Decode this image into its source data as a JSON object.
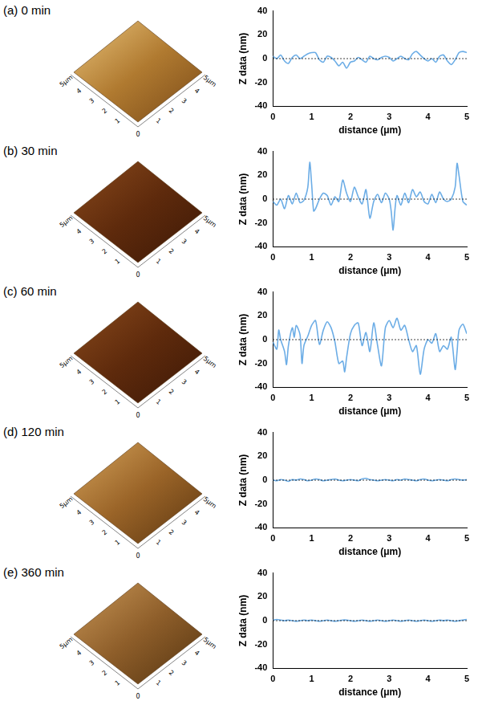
{
  "chart_data": [
    {
      "type": "line",
      "title": "(a) 0 min",
      "color": "#6cade6",
      "line_style": "solid",
      "grid": false,
      "x_label": "distance (μm)",
      "y_label": "Z data (nm)",
      "reference_line": 0,
      "xlim": [
        0,
        5
      ],
      "xticks": [
        0,
        1,
        2,
        3,
        4,
        5
      ],
      "ylim": [
        -40,
        40
      ],
      "yticks": [
        -40,
        -20,
        0,
        20,
        40
      ],
      "x": [
        0,
        0.1,
        0.2,
        0.3,
        0.4,
        0.5,
        0.6,
        0.7,
        0.8,
        0.9,
        1.0,
        1.1,
        1.2,
        1.3,
        1.4,
        1.5,
        1.6,
        1.7,
        1.8,
        1.9,
        2.0,
        2.1,
        2.2,
        2.3,
        2.4,
        2.5,
        2.6,
        2.7,
        2.8,
        2.9,
        3.0,
        3.1,
        3.2,
        3.3,
        3.4,
        3.5,
        3.6,
        3.7,
        3.8,
        3.9,
        4.0,
        4.1,
        4.2,
        4.3,
        4.4,
        4.5,
        4.6,
        4.7,
        4.8,
        4.9,
        5.0
      ],
      "values": [
        2,
        0,
        3,
        -2,
        -4,
        1,
        3,
        0,
        2,
        4,
        5,
        5,
        -1,
        -3,
        2,
        1,
        -2,
        -6,
        -3,
        -8,
        -3,
        -2,
        1,
        -1,
        -3,
        2,
        0,
        -1,
        1,
        2,
        1,
        -2,
        0,
        2,
        0,
        -1,
        4,
        6,
        3,
        0,
        -2,
        0,
        -3,
        2,
        3,
        -2,
        -5,
        -1,
        5,
        6,
        5
      ]
    },
    {
      "type": "line",
      "title": "(b) 30 min",
      "color": "#6cade6",
      "line_style": "solid",
      "grid": false,
      "x_label": "distance (μm)",
      "y_label": "Z data (nm)",
      "reference_line": 0,
      "xlim": [
        0,
        5
      ],
      "xticks": [
        0,
        1,
        2,
        3,
        4,
        5
      ],
      "ylim": [
        -40,
        40
      ],
      "yticks": [
        -40,
        -20,
        0,
        20,
        40
      ],
      "x": [
        0,
        0.1,
        0.2,
        0.3,
        0.4,
        0.5,
        0.6,
        0.7,
        0.8,
        0.9,
        0.95,
        1.0,
        1.05,
        1.1,
        1.2,
        1.3,
        1.4,
        1.5,
        1.6,
        1.7,
        1.8,
        1.9,
        2.0,
        2.1,
        2.2,
        2.3,
        2.4,
        2.5,
        2.6,
        2.7,
        2.8,
        2.9,
        3.0,
        3.05,
        3.1,
        3.15,
        3.2,
        3.3,
        3.4,
        3.5,
        3.6,
        3.7,
        3.8,
        3.9,
        4.0,
        4.1,
        4.2,
        4.3,
        4.4,
        4.5,
        4.6,
        4.7,
        4.75,
        4.8,
        4.9,
        5.0
      ],
      "values": [
        -2,
        -5,
        0,
        -8,
        3,
        -4,
        5,
        -3,
        -1,
        10,
        31,
        12,
        -10,
        -8,
        0,
        5,
        3,
        -5,
        2,
        -2,
        16,
        5,
        -2,
        10,
        2,
        -4,
        8,
        -16,
        -2,
        4,
        -3,
        5,
        0,
        -10,
        -26,
        -8,
        3,
        -5,
        5,
        -3,
        8,
        2,
        6,
        -2,
        -4,
        4,
        -3,
        6,
        0,
        -2,
        0,
        10,
        30,
        20,
        -2,
        -5
      ]
    },
    {
      "type": "line",
      "title": "(c) 60 min",
      "color": "#6cade6",
      "line_style": "solid",
      "grid": false,
      "x_label": "distance (μm)",
      "y_label": "Z data (nm)",
      "reference_line": 0,
      "xlim": [
        0,
        5
      ],
      "xticks": [
        0,
        1,
        2,
        3,
        4,
        5
      ],
      "ylim": [
        -40,
        40
      ],
      "yticks": [
        -40,
        -20,
        0,
        20,
        40
      ],
      "x": [
        0,
        0.1,
        0.15,
        0.2,
        0.3,
        0.35,
        0.4,
        0.5,
        0.55,
        0.6,
        0.7,
        0.75,
        0.8,
        0.9,
        1.0,
        1.1,
        1.2,
        1.3,
        1.4,
        1.5,
        1.6,
        1.7,
        1.8,
        1.85,
        1.9,
        2.0,
        2.1,
        2.2,
        2.3,
        2.4,
        2.5,
        2.6,
        2.7,
        2.8,
        2.9,
        3.0,
        3.1,
        3.2,
        3.3,
        3.4,
        3.5,
        3.6,
        3.7,
        3.8,
        3.9,
        4.0,
        4.1,
        4.2,
        4.3,
        4.4,
        4.5,
        4.6,
        4.7,
        4.75,
        4.8,
        4.9,
        5.0
      ],
      "values": [
        -2,
        -8,
        8,
        0,
        -10,
        -21,
        -5,
        10,
        2,
        12,
        4,
        -20,
        -5,
        3,
        12,
        16,
        -4,
        8,
        15,
        10,
        -2,
        -20,
        -18,
        -27,
        -15,
        5,
        12,
        14,
        -5,
        6,
        -10,
        14,
        -5,
        -22,
        10,
        16,
        10,
        18,
        8,
        12,
        0,
        -10,
        -5,
        -29,
        -8,
        0,
        -3,
        5,
        -10,
        -5,
        -8,
        2,
        -25,
        -10,
        8,
        13,
        5
      ]
    },
    {
      "type": "line",
      "title": "(d) 120 min",
      "color": "#6cade6",
      "line_style": "solid",
      "grid": false,
      "x_label": "distance (μm)",
      "y_label": "Z data (nm)",
      "reference_line": 0,
      "xlim": [
        0,
        5
      ],
      "xticks": [
        0,
        1,
        2,
        3,
        4,
        5
      ],
      "ylim": [
        -40,
        40
      ],
      "yticks": [
        -40,
        -20,
        0,
        20,
        40
      ],
      "x": [
        0,
        0.1,
        0.2,
        0.3,
        0.4,
        0.5,
        0.6,
        0.7,
        0.8,
        0.9,
        1.0,
        1.1,
        1.2,
        1.3,
        1.4,
        1.5,
        1.6,
        1.7,
        1.8,
        1.9,
        2.0,
        2.1,
        2.2,
        2.3,
        2.4,
        2.5,
        2.6,
        2.7,
        2.8,
        2.9,
        3.0,
        3.1,
        3.2,
        3.3,
        3.4,
        3.5,
        3.6,
        3.7,
        3.8,
        3.9,
        4.0,
        4.1,
        4.2,
        4.3,
        4.4,
        4.5,
        4.6,
        4.7,
        4.8,
        4.9,
        5.0
      ],
      "values": [
        0,
        -0.5,
        0.5,
        0,
        -1,
        0.5,
        0,
        1,
        0.5,
        -0.5,
        0,
        1,
        0.5,
        -0.5,
        0,
        0.5,
        1,
        0,
        -0.5,
        0,
        0.5,
        0,
        -0.5,
        1,
        1.5,
        0.5,
        0,
        -0.5,
        0,
        0.5,
        0,
        -0.5,
        0.5,
        0,
        1,
        0.5,
        0,
        -0.5,
        0.5,
        1,
        0,
        -0.5,
        0,
        0.5,
        0,
        -0.5,
        0.5,
        1,
        0.5,
        0,
        0.5
      ]
    },
    {
      "type": "line",
      "title": "(e) 360 min",
      "color": "#6cade6",
      "line_style": "solid",
      "grid": false,
      "x_label": "distance (μm)",
      "y_label": "Z data (nm)",
      "reference_line": 0,
      "xlim": [
        0,
        5
      ],
      "xticks": [
        0,
        1,
        2,
        3,
        4,
        5
      ],
      "ylim": [
        -40,
        40
      ],
      "yticks": [
        -40,
        -20,
        0,
        20,
        40
      ],
      "x": [
        0,
        0.1,
        0.2,
        0.3,
        0.4,
        0.5,
        0.6,
        0.7,
        0.8,
        0.9,
        1.0,
        1.1,
        1.2,
        1.3,
        1.4,
        1.5,
        1.6,
        1.7,
        1.8,
        1.9,
        2.0,
        2.1,
        2.2,
        2.3,
        2.4,
        2.5,
        2.6,
        2.7,
        2.8,
        2.9,
        3.0,
        3.1,
        3.2,
        3.3,
        3.4,
        3.5,
        3.6,
        3.7,
        3.8,
        3.9,
        4.0,
        4.1,
        4.2,
        4.3,
        4.4,
        4.5,
        4.6,
        4.7,
        4.8,
        4.9,
        5.0
      ],
      "values": [
        0.5,
        1,
        0.5,
        0,
        0.5,
        0,
        -0.5,
        0,
        0.5,
        0,
        0.5,
        0,
        -0.5,
        0,
        0.5,
        0,
        -0.5,
        0,
        0.5,
        0.5,
        0,
        -0.5,
        0,
        0.5,
        0,
        -0.5,
        0,
        0.5,
        0,
        -0.5,
        0,
        0.5,
        0,
        -0.5,
        0,
        0.5,
        0,
        -0.5,
        0,
        0.5,
        0,
        -0.5,
        0,
        0.5,
        0,
        0.5,
        0,
        -0.5,
        0,
        0.5,
        1
      ]
    }
  ],
  "afm_image_axis_labels": [
    "0",
    "1",
    "2",
    "3",
    "4",
    "5μm"
  ]
}
